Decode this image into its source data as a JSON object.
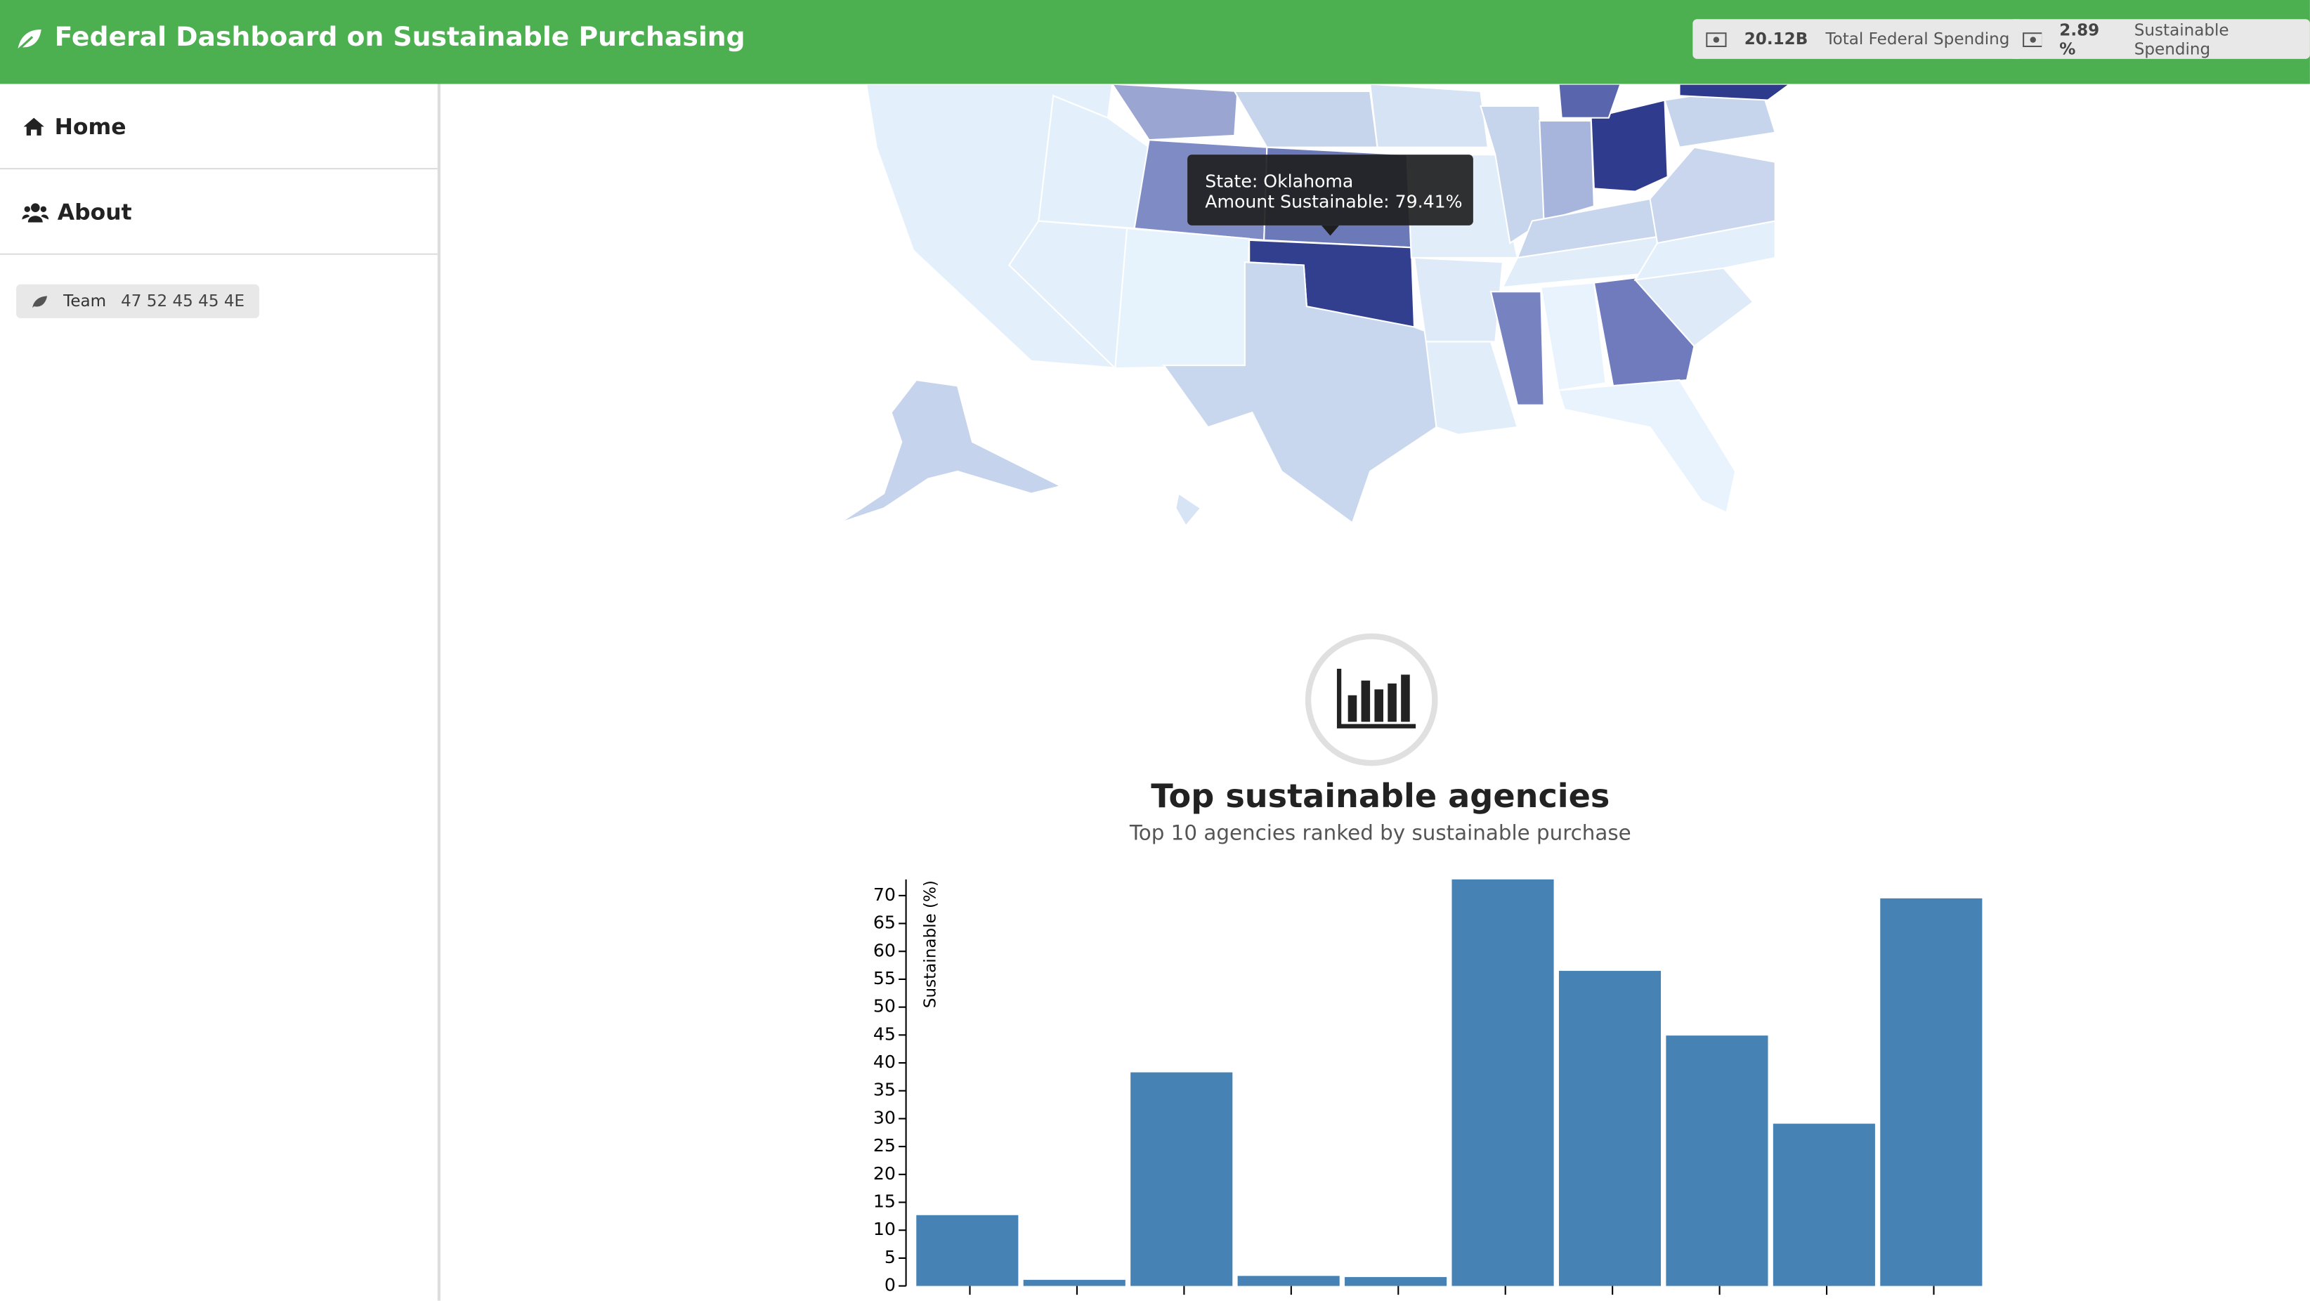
{
  "header": {
    "title": "Federal Dashboard on Sustainable Purchasing",
    "badges": [
      {
        "value": "20.12B",
        "label": "Total Federal Spending"
      },
      {
        "value": "2.89 %",
        "label": "Sustainable Spending"
      }
    ]
  },
  "sidebar": {
    "items": [
      "Home",
      "About"
    ],
    "team": {
      "label": "Team",
      "code": "47 52 45 45 4E"
    }
  },
  "map": {
    "tooltip": [
      "State: Oklahoma",
      "Amount Sustainable: 79.41%"
    ]
  },
  "chart_data": {
    "type": "bar",
    "title": "Top sustainable agencies",
    "subtitle": "Top 10 agencies ranked by sustainable purchase",
    "y_label": "Sustainable (%)",
    "categories": [
      null,
      null,
      null,
      null,
      null,
      null,
      null,
      null,
      null,
      null
    ],
    "values": [
      12.7,
      1.1,
      38.3,
      1.8,
      1.6,
      72.9,
      56.5,
      44.9,
      29.1,
      69.5
    ],
    "color": "#4682b4",
    "ylim": [
      0,
      72.9
    ],
    "yticks": [
      0,
      5,
      10,
      15,
      20,
      25,
      30,
      35,
      40,
      45,
      50,
      55,
      60,
      65,
      70
    ]
  }
}
